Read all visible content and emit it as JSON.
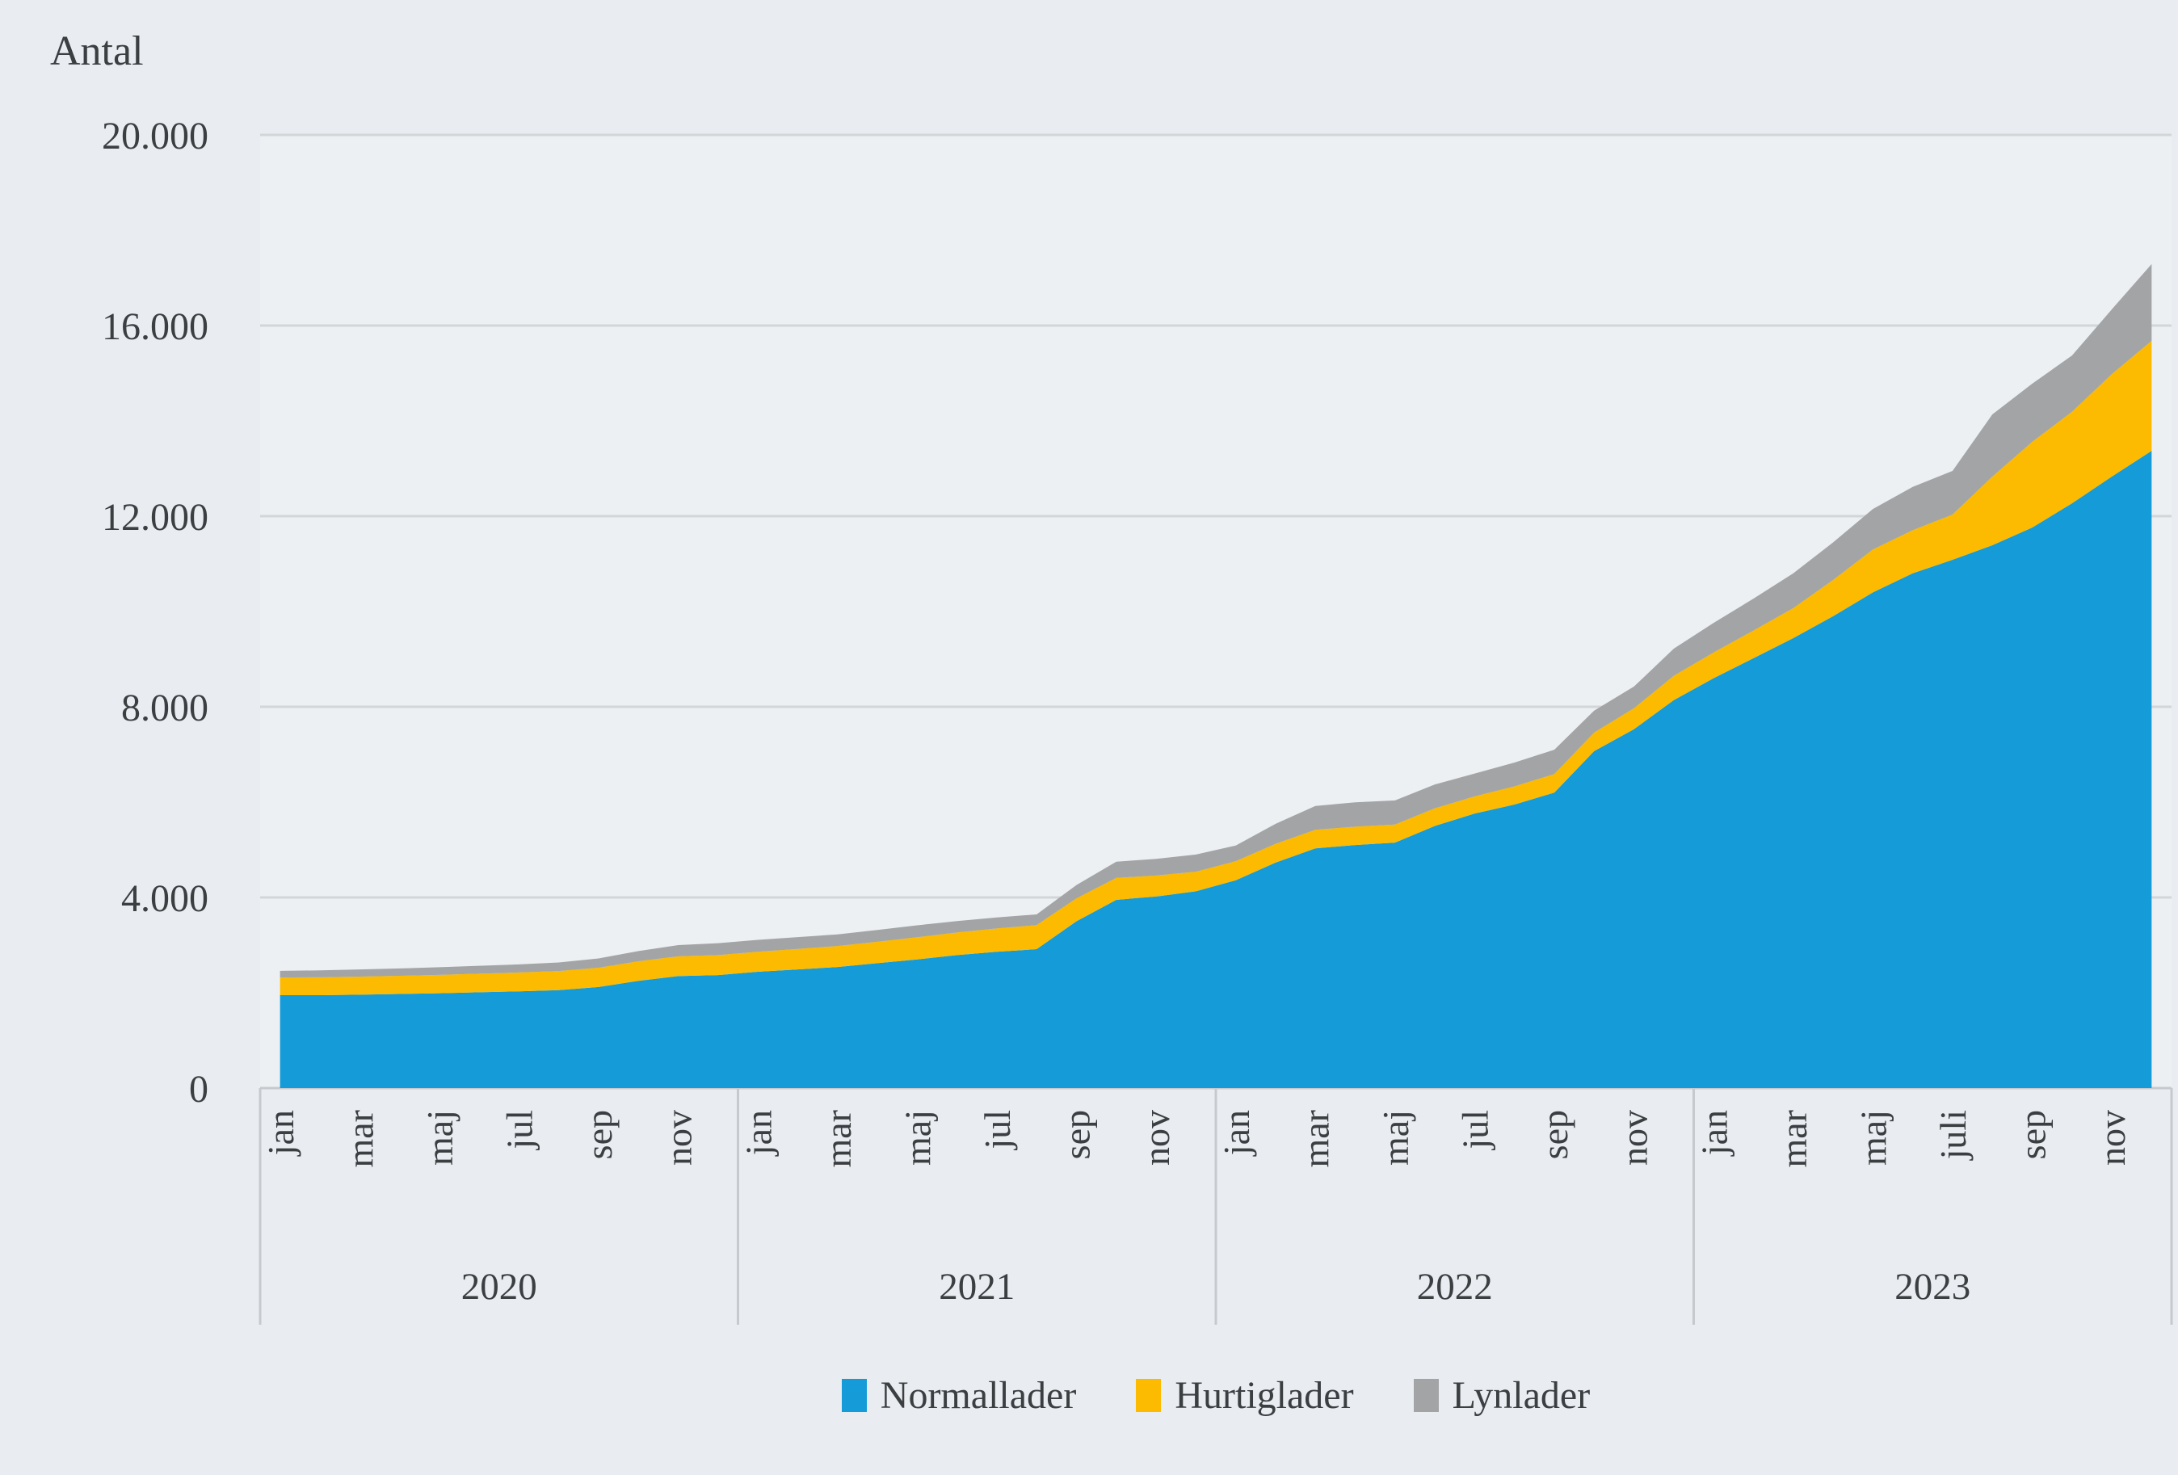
{
  "chart_data": {
    "type": "area",
    "stacked": true,
    "ylabel": "Antal",
    "ylim": [
      0,
      20000
    ],
    "grid": true,
    "legend_position": "bottom",
    "months_per_year": 12,
    "years": [
      {
        "label": "2020",
        "tick_labels": [
          "jan",
          "mar",
          "maj",
          "jul",
          "sep",
          "nov"
        ]
      },
      {
        "label": "2021",
        "tick_labels": [
          "jan",
          "mar",
          "maj",
          "jul",
          "sep",
          "nov"
        ]
      },
      {
        "label": "2022",
        "tick_labels": [
          "jan",
          "mar",
          "maj",
          "jul",
          "sep",
          "nov"
        ]
      },
      {
        "label": "2023",
        "tick_labels": [
          "jan",
          "mar",
          "maj",
          "juli",
          "sep",
          "nov"
        ]
      }
    ],
    "yticks": [
      {
        "value": 0,
        "label": "0"
      },
      {
        "value": 4000,
        "label": "4.000"
      },
      {
        "value": 8000,
        "label": "8.000"
      },
      {
        "value": 12000,
        "label": "12.000"
      },
      {
        "value": 16000,
        "label": "16.000"
      },
      {
        "value": 20000,
        "label": "20.000"
      }
    ],
    "series": [
      {
        "name": "Normallader",
        "color": "#149bd8",
        "values": [
          1950,
          1950,
          1960,
          1975,
          1990,
          2010,
          2030,
          2055,
          2120,
          2250,
          2350,
          2370,
          2440,
          2490,
          2540,
          2620,
          2700,
          2790,
          2860,
          2915,
          3500,
          3950,
          4020,
          4130,
          4360,
          4730,
          5030,
          5100,
          5150,
          5500,
          5760,
          5950,
          6200,
          7070,
          7530,
          8140,
          8600,
          9020,
          9440,
          9900,
          10400,
          10800,
          11085,
          11390,
          11760,
          12270,
          12830,
          13370
        ]
      },
      {
        "name": "Hurtiglader",
        "color": "#fcba00",
        "values": [
          370,
          375,
          380,
          380,
          385,
          390,
          395,
          400,
          405,
          410,
          415,
          420,
          420,
          430,
          440,
          450,
          465,
          475,
          490,
          505,
          480,
          460,
          440,
          410,
          400,
          395,
          390,
          385,
          380,
          370,
          360,
          380,
          390,
          390,
          440,
          510,
          540,
          580,
          630,
          760,
          900,
          905,
          950,
          1440,
          1800,
          1920,
          2150,
          2310
        ]
      },
      {
        "name": "Lynlader",
        "color": "#a3a4a6",
        "values": [
          140,
          145,
          150,
          155,
          160,
          165,
          170,
          180,
          195,
          215,
          235,
          250,
          250,
          248,
          245,
          248,
          250,
          240,
          230,
          225,
          280,
          340,
          350,
          360,
          330,
          420,
          500,
          510,
          505,
          500,
          480,
          500,
          510,
          460,
          455,
          570,
          620,
          670,
          730,
          790,
          850,
          910,
          915,
          1305,
          1220,
          1180,
          1360,
          1610
        ]
      }
    ],
    "colors": {
      "page_background": "#e9ecf0",
      "plot_background": "#edf0f3",
      "gridline": "#d3d6d9",
      "axis_line": "#c6cace",
      "text": "#3c3f42"
    }
  }
}
